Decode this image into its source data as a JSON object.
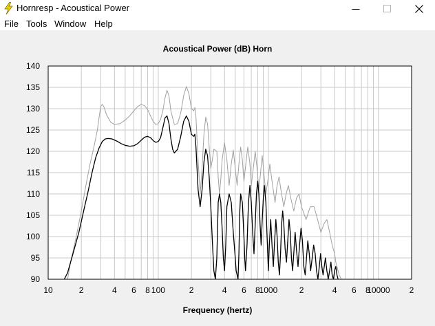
{
  "window": {
    "title": "Hornresp - Acoustical Power",
    "app_icon": "lightning-bolt-icon",
    "controls": [
      "minimize-icon",
      "maximize-icon",
      "close-icon"
    ]
  },
  "menu": {
    "items": [
      "File",
      "Tools",
      "Window",
      "Help"
    ]
  },
  "colors": {
    "background": "#f0f0f0",
    "plot_background": "#ffffff",
    "grid": "#c8c8c8",
    "series_main": "#000000",
    "series_secondary": "#a0a0a0"
  },
  "chart_data": {
    "type": "line",
    "title": "Acoustical Power (dB)    Horn",
    "xlabel": "Frequency (hertz)",
    "ylabel": "",
    "xscale": "log",
    "xlim": [
      10,
      20000
    ],
    "ylim": [
      90,
      140
    ],
    "grid": true,
    "x_tick_labels": [
      {
        "x": 10,
        "label": "10"
      },
      {
        "x": 20,
        "label": "2"
      },
      {
        "x": 40,
        "label": "4"
      },
      {
        "x": 60,
        "label": "6"
      },
      {
        "x": 80,
        "label": "8"
      },
      {
        "x": 100,
        "label": "100"
      },
      {
        "x": 200,
        "label": "2"
      },
      {
        "x": 400,
        "label": "4"
      },
      {
        "x": 600,
        "label": "6"
      },
      {
        "x": 800,
        "label": "8"
      },
      {
        "x": 1000,
        "label": "1000"
      },
      {
        "x": 2000,
        "label": "2"
      },
      {
        "x": 4000,
        "label": "4"
      },
      {
        "x": 6000,
        "label": "6"
      },
      {
        "x": 8000,
        "label": "8"
      },
      {
        "x": 10000,
        "label": "10000"
      },
      {
        "x": 20000,
        "label": "2"
      }
    ],
    "y_ticks": [
      90,
      95,
      100,
      105,
      110,
      115,
      120,
      125,
      130,
      135,
      140
    ],
    "series": [
      {
        "color": "#a0a0a0",
        "points": [
          [
            15,
            90
          ],
          [
            16,
            94
          ],
          [
            18,
            100
          ],
          [
            20,
            106
          ],
          [
            22,
            112
          ],
          [
            24,
            117
          ],
          [
            26,
            121
          ],
          [
            28,
            125
          ],
          [
            29,
            128
          ],
          [
            30,
            130.5
          ],
          [
            31,
            131
          ],
          [
            32,
            130.5
          ],
          [
            34,
            128.5
          ],
          [
            37,
            126.8
          ],
          [
            40,
            126.3
          ],
          [
            45,
            126.5
          ],
          [
            50,
            127.3
          ],
          [
            55,
            128.3
          ],
          [
            60,
            129.5
          ],
          [
            65,
            130.5
          ],
          [
            70,
            131
          ],
          [
            75,
            130.7
          ],
          [
            80,
            129.8
          ],
          [
            85,
            128.3
          ],
          [
            90,
            127
          ],
          [
            95,
            126.3
          ],
          [
            100,
            126.5
          ],
          [
            105,
            127.5
          ],
          [
            110,
            129.5
          ],
          [
            115,
            132.5
          ],
          [
            120,
            134.3
          ],
          [
            125,
            133
          ],
          [
            130,
            129.5
          ],
          [
            140,
            126.3
          ],
          [
            150,
            126.5
          ],
          [
            160,
            129
          ],
          [
            170,
            133
          ],
          [
            180,
            135.2
          ],
          [
            190,
            133.5
          ],
          [
            200,
            130
          ],
          [
            210,
            129.5
          ],
          [
            215,
            130.3
          ],
          [
            220,
            128
          ],
          [
            230,
            118
          ],
          [
            240,
            110
          ],
          [
            250,
            116
          ],
          [
            260,
            124
          ],
          [
            270,
            128
          ],
          [
            280,
            126.5
          ],
          [
            290,
            121
          ],
          [
            300,
            116
          ],
          [
            310,
            118
          ],
          [
            320,
            120.5
          ],
          [
            340,
            120
          ],
          [
            350,
            114
          ],
          [
            360,
            110
          ],
          [
            370,
            113.5
          ],
          [
            380,
            118
          ],
          [
            400,
            122
          ],
          [
            420,
            118
          ],
          [
            440,
            112
          ],
          [
            460,
            117
          ],
          [
            480,
            120.3
          ],
          [
            500,
            116
          ],
          [
            520,
            112
          ],
          [
            540,
            117
          ],
          [
            560,
            121
          ],
          [
            580,
            118
          ],
          [
            600,
            113
          ],
          [
            630,
            118
          ],
          [
            650,
            121
          ],
          [
            680,
            117
          ],
          [
            700,
            112
          ],
          [
            730,
            116
          ],
          [
            760,
            120
          ],
          [
            790,
            116
          ],
          [
            820,
            111
          ],
          [
            850,
            115
          ],
          [
            880,
            119
          ],
          [
            910,
            115
          ],
          [
            950,
            110
          ],
          [
            1000,
            114
          ],
          [
            1030,
            117
          ],
          [
            1080,
            113
          ],
          [
            1150,
            108
          ],
          [
            1200,
            112
          ],
          [
            1250,
            114
          ],
          [
            1300,
            111
          ],
          [
            1380,
            107
          ],
          [
            1450,
            110
          ],
          [
            1520,
            112
          ],
          [
            1600,
            109
          ],
          [
            1700,
            106
          ],
          [
            1800,
            109
          ],
          [
            1900,
            110
          ],
          [
            2000,
            107
          ],
          [
            2200,
            104
          ],
          [
            2400,
            107
          ],
          [
            2600,
            107
          ],
          [
            2800,
            104
          ],
          [
            3000,
            101
          ],
          [
            3200,
            103
          ],
          [
            3400,
            104
          ],
          [
            3600,
            101
          ],
          [
            3800,
            98
          ],
          [
            4000,
            96
          ],
          [
            4100,
            94
          ],
          [
            4200,
            93
          ],
          [
            4400,
            91
          ],
          [
            4600,
            90
          ]
        ]
      },
      {
        "color": "#000000",
        "points": [
          [
            14,
            90
          ],
          [
            15,
            91.5
          ],
          [
            17,
            96.5
          ],
          [
            19,
            101
          ],
          [
            21,
            106
          ],
          [
            23,
            110.5
          ],
          [
            25,
            115
          ],
          [
            27,
            118.5
          ],
          [
            29,
            120.8
          ],
          [
            31,
            122.3
          ],
          [
            33,
            122.9
          ],
          [
            35,
            123
          ],
          [
            38,
            122.9
          ],
          [
            42,
            122.4
          ],
          [
            46,
            121.8
          ],
          [
            50,
            121.4
          ],
          [
            55,
            121.2
          ],
          [
            60,
            121.3
          ],
          [
            65,
            121.8
          ],
          [
            70,
            122.6
          ],
          [
            75,
            123.3
          ],
          [
            80,
            123.5
          ],
          [
            85,
            123.2
          ],
          [
            90,
            122.5
          ],
          [
            95,
            122.1
          ],
          [
            100,
            122.3
          ],
          [
            105,
            123.2
          ],
          [
            110,
            125.5
          ],
          [
            115,
            127.8
          ],
          [
            120,
            128.3
          ],
          [
            125,
            126.5
          ],
          [
            130,
            123
          ],
          [
            135,
            120.5
          ],
          [
            140,
            119.6
          ],
          [
            150,
            120.5
          ],
          [
            160,
            123.5
          ],
          [
            170,
            127
          ],
          [
            180,
            128.3
          ],
          [
            190,
            127
          ],
          [
            200,
            124
          ],
          [
            210,
            123.5
          ],
          [
            215,
            124
          ],
          [
            220,
            121
          ],
          [
            230,
            111
          ],
          [
            240,
            107
          ],
          [
            250,
            111
          ],
          [
            260,
            117.5
          ],
          [
            270,
            120.5
          ],
          [
            280,
            119
          ],
          [
            290,
            114
          ],
          [
            300,
            107
          ],
          [
            310,
            99
          ],
          [
            320,
            92
          ],
          [
            330,
            90
          ],
          [
            340,
            95
          ],
          [
            350,
            108
          ],
          [
            360,
            110
          ],
          [
            370,
            108
          ],
          [
            380,
            102
          ],
          [
            390,
            95
          ],
          [
            400,
            92
          ],
          [
            410,
            98
          ],
          [
            420,
            107
          ],
          [
            440,
            110
          ],
          [
            460,
            108
          ],
          [
            480,
            101
          ],
          [
            500,
            95
          ],
          [
            510,
            92
          ],
          [
            520,
            91
          ],
          [
            530,
            90
          ],
          [
            540,
            96
          ],
          [
            550,
            106
          ],
          [
            560,
            110
          ],
          [
            580,
            108
          ],
          [
            600,
            100
          ],
          [
            610,
            95
          ],
          [
            620,
            92
          ],
          [
            640,
            98
          ],
          [
            660,
            108
          ],
          [
            680,
            112
          ],
          [
            700,
            108
          ],
          [
            720,
            101
          ],
          [
            740,
            96
          ],
          [
            760,
            103
          ],
          [
            780,
            110
          ],
          [
            800,
            113
          ],
          [
            820,
            110
          ],
          [
            840,
            103
          ],
          [
            860,
            98
          ],
          [
            880,
            104
          ],
          [
            900,
            109
          ],
          [
            920,
            112
          ],
          [
            950,
            108
          ],
          [
            970,
            101
          ],
          [
            990,
            95
          ],
          [
            1000,
            92
          ],
          [
            1020,
            98
          ],
          [
            1050,
            104
          ],
          [
            1080,
            98
          ],
          [
            1110,
            93
          ],
          [
            1140,
            99
          ],
          [
            1170,
            104
          ],
          [
            1200,
            100
          ],
          [
            1230,
            94
          ],
          [
            1260,
            91
          ],
          [
            1290,
            96
          ],
          [
            1320,
            103
          ],
          [
            1350,
            106
          ],
          [
            1380,
            103
          ],
          [
            1420,
            97
          ],
          [
            1460,
            94
          ],
          [
            1500,
            99
          ],
          [
            1540,
            104
          ],
          [
            1580,
            101
          ],
          [
            1620,
            95
          ],
          [
            1660,
            92
          ],
          [
            1700,
            96
          ],
          [
            1750,
            101
          ],
          [
            1800,
            97
          ],
          [
            1860,
            93
          ],
          [
            1920,
            98
          ],
          [
            1980,
            102
          ],
          [
            2040,
            99
          ],
          [
            2100,
            93
          ],
          [
            2160,
            91
          ],
          [
            2220,
            95
          ],
          [
            2280,
            99
          ],
          [
            2350,
            96
          ],
          [
            2420,
            92
          ],
          [
            2500,
            95
          ],
          [
            2580,
            98
          ],
          [
            2660,
            96
          ],
          [
            2740,
            92
          ],
          [
            2820,
            90
          ],
          [
            2900,
            93
          ],
          [
            2980,
            96
          ],
          [
            3060,
            93
          ],
          [
            3140,
            91
          ],
          [
            3220,
            93
          ],
          [
            3300,
            95
          ],
          [
            3400,
            92
          ],
          [
            3500,
            90
          ],
          [
            3600,
            92
          ],
          [
            3700,
            94
          ],
          [
            3800,
            91
          ],
          [
            3900,
            90
          ],
          [
            4000,
            92
          ],
          [
            4100,
            93
          ],
          [
            4200,
            91
          ],
          [
            4300,
            90
          ]
        ]
      }
    ]
  }
}
